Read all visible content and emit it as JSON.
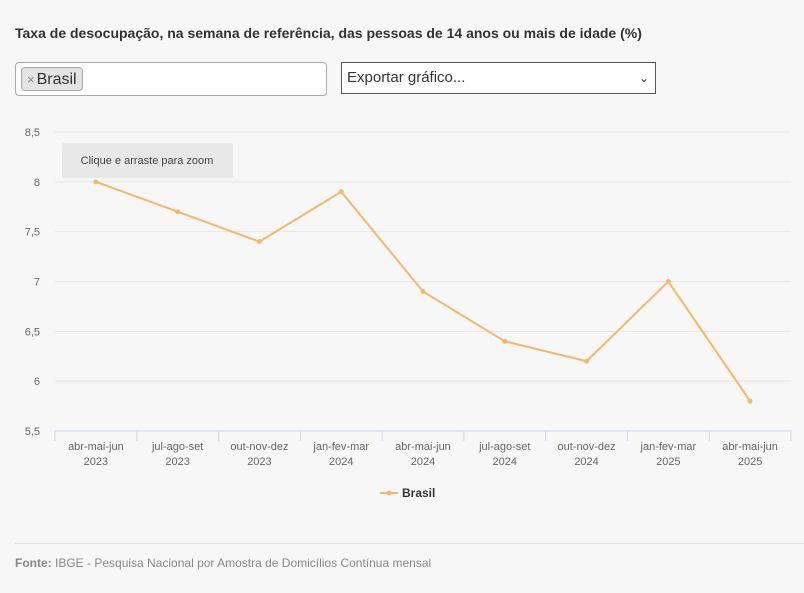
{
  "title": "Taxa de desocupação, na semana de referência, das pessoas de 14 anos ou mais de idade (%)",
  "selector": {
    "tag": "Brasil",
    "remove_icon": "×"
  },
  "export": {
    "label": "Exportar gráfico..."
  },
  "tooltip": "Clique e arraste para zoom",
  "footer": {
    "label": "Fonte:",
    "text": "IBGE - Pesquisa Nacional por Amostra de Domicílios Contínua mensal"
  },
  "chart_data": {
    "type": "line",
    "categories": [
      [
        "abr-mai-jun",
        "2023"
      ],
      [
        "jul-ago-set",
        "2023"
      ],
      [
        "out-nov-dez",
        "2023"
      ],
      [
        "jan-fev-mar",
        "2024"
      ],
      [
        "abr-mai-jun",
        "2024"
      ],
      [
        "jul-ago-set",
        "2024"
      ],
      [
        "out-nov-dez",
        "2024"
      ],
      [
        "jan-fev-mar",
        "2025"
      ],
      [
        "abr-mai-jun",
        "2025"
      ]
    ],
    "series": [
      {
        "name": "Brasil",
        "color": "#f2b968",
        "values": [
          8.0,
          7.7,
          7.4,
          7.9,
          6.9,
          6.4,
          6.2,
          7.0,
          5.8
        ]
      }
    ],
    "yticks": [
      "5,5",
      "6",
      "6,5",
      "7",
      "7,5",
      "8",
      "8,5"
    ],
    "ylim": [
      5.5,
      8.5
    ],
    "legend": "bottom-center",
    "grid": true
  }
}
